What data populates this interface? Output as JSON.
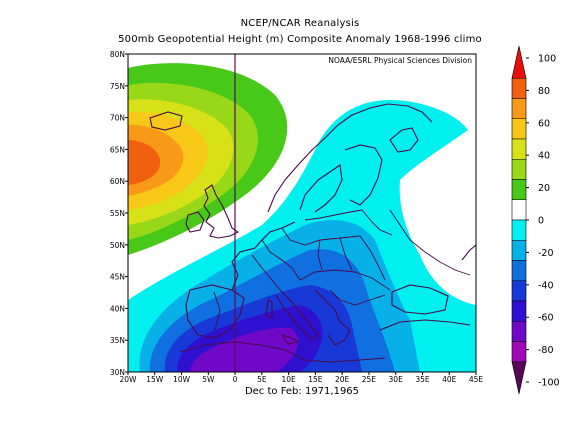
{
  "header": {
    "title": "NCEP/NCAR Reanalysis",
    "subtitle": "500mb Geopotential Height (m) Composite Anomaly 1968-1996 climo"
  },
  "map": {
    "credit": "NOAA/ESRL Physical Sciences Division",
    "lat_labels": [
      "80N",
      "75N",
      "70N",
      "65N",
      "60N",
      "55N",
      "50N",
      "45N",
      "40N",
      "35N",
      "30N"
    ],
    "lon_labels": [
      "20W",
      "15W",
      "10W",
      "5W",
      "0",
      "5E",
      "10E",
      "15E",
      "20E",
      "25E",
      "30E",
      "35E",
      "40E",
      "45E"
    ],
    "lat_range": [
      30,
      80
    ],
    "lon_range": [
      -20,
      45
    ],
    "period": "Dec to Feb: 1971,1965"
  },
  "colorbar": {
    "labels": [
      "100",
      "80",
      "60",
      "40",
      "20",
      "0",
      "-20",
      "-40",
      "-60",
      "-80",
      "-100"
    ],
    "colors": [
      "#e8100a",
      "#f06010",
      "#f89a18",
      "#f8c818",
      "#d8e018",
      "#98d818",
      "#48c818",
      "#ffffff",
      "#00f0f0",
      "#08b0e8",
      "#1070e0",
      "#1838d8",
      "#3010d0",
      "#7008c8",
      "#a008b8",
      "#580858"
    ]
  }
}
